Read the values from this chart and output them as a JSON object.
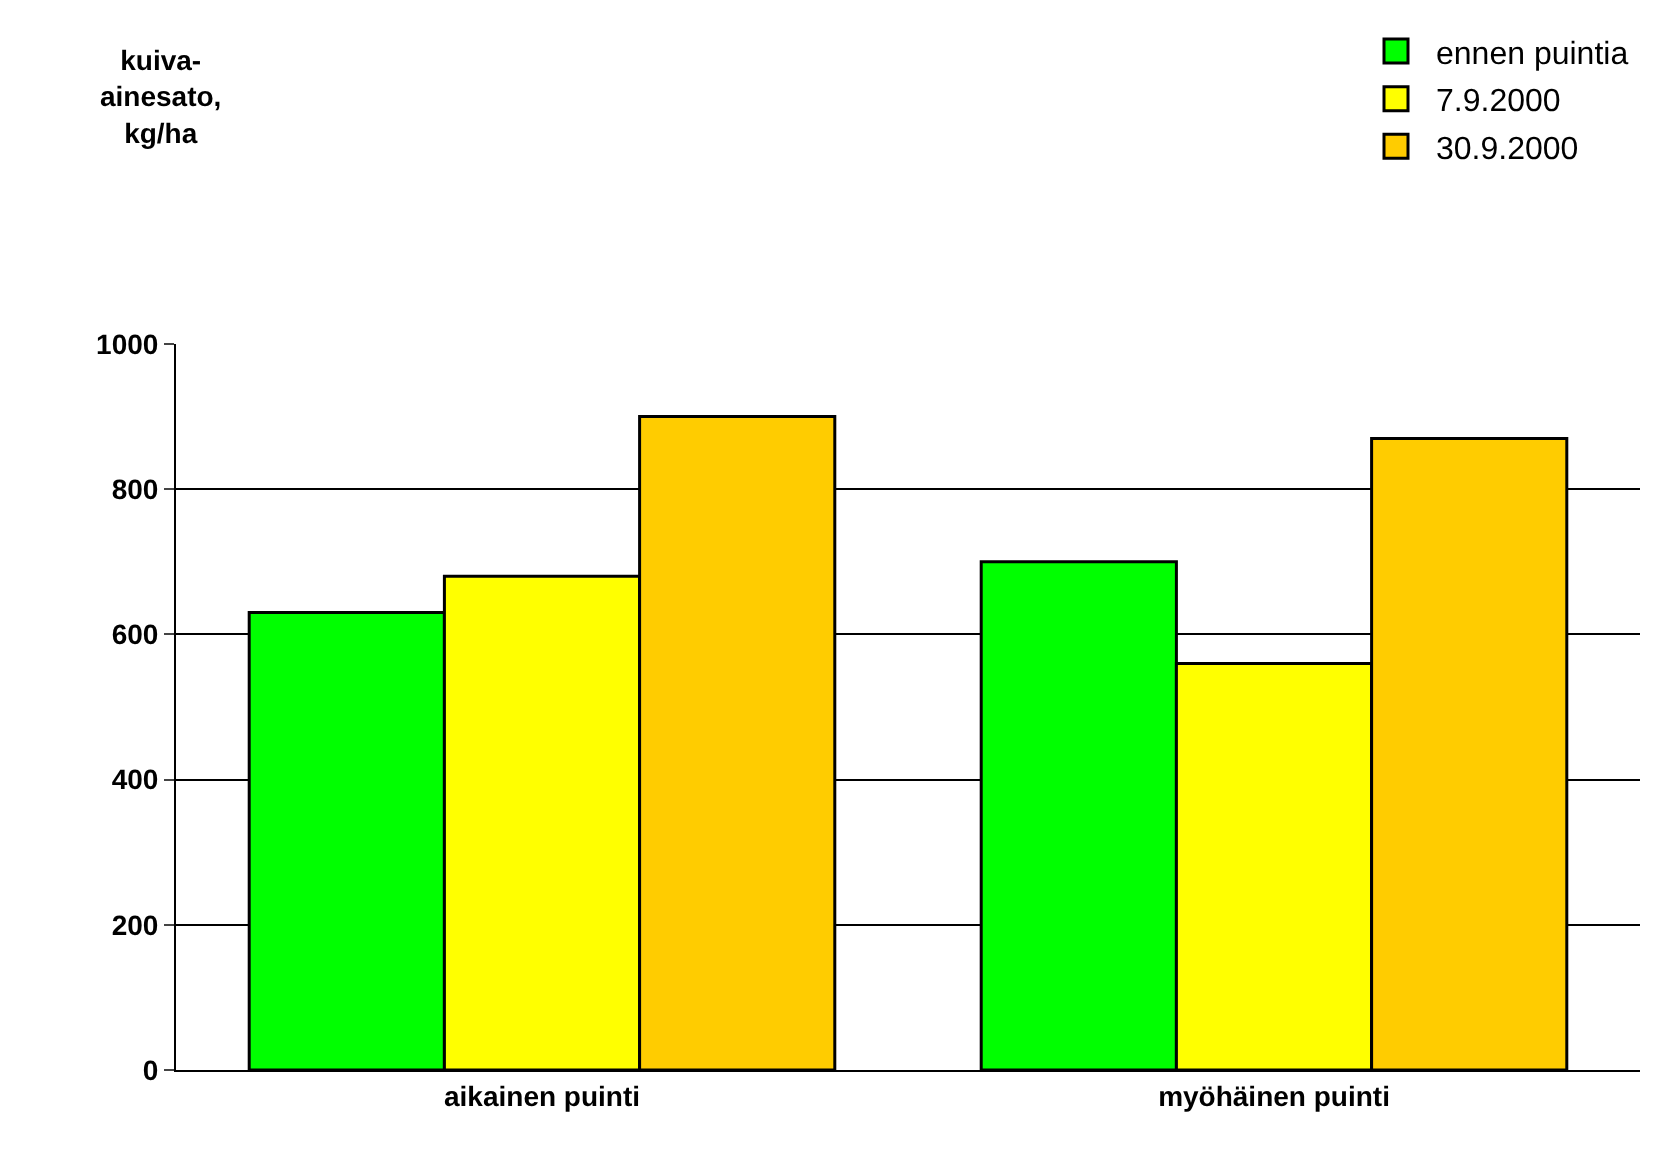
{
  "chart_data": {
    "type": "bar",
    "annotations": [
      "kuiva-\nainesato,\nkg/ha"
    ],
    "categories": [
      "aikainen puinti",
      "myöhäinen puinti"
    ],
    "series": [
      {
        "name": "ennen puintia",
        "color": "#00ff00",
        "values": [
          630,
          700
        ]
      },
      {
        "name": "7.9.2000",
        "color": "#ffff00",
        "values": [
          680,
          560
        ]
      },
      {
        "name": "30.9.2000",
        "color": "#ffcc00",
        "values": [
          900,
          870
        ]
      }
    ],
    "ylim": [
      0,
      1000
    ],
    "yticks": [
      0,
      200,
      400,
      600,
      800,
      1000
    ],
    "grid": "y",
    "legend": "top right"
  }
}
